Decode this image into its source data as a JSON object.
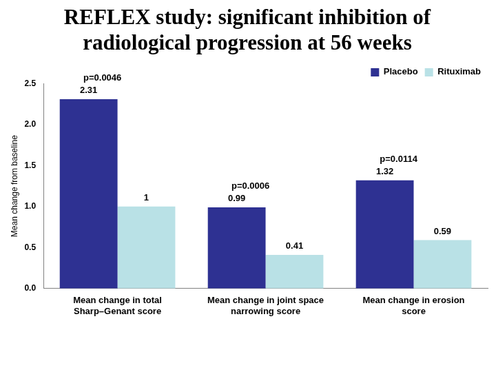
{
  "chart_data": {
    "type": "bar",
    "title": [
      "REFLEX study: significant inhibition of",
      "radiological progression at 56 weeks"
    ],
    "y_label": "Mean change from baseline",
    "categories": [
      [
        "Mean change in total",
        "Sharp–Genant score"
      ],
      [
        "Mean change in joint space",
        "narrowing score"
      ],
      [
        "Mean change in erosion",
        "score"
      ]
    ],
    "series": [
      {
        "name": "Placebo",
        "color": "#2e3192",
        "values": [
          2.31,
          0.99,
          1.32
        ]
      },
      {
        "name": "Rituximab",
        "color": "#b9e1e6",
        "values": [
          1,
          0.41,
          0.59
        ]
      }
    ],
    "annotations": [
      "p=0.0046",
      "p=0.0006",
      "p=0.0114"
    ],
    "ylim": [
      0,
      2.5
    ],
    "yticks": [
      {
        "value": 0,
        "label": "0.0"
      },
      0.5,
      {
        "value": 1,
        "label": "1.0"
      },
      1.5,
      {
        "value": 2,
        "label": "2.0"
      },
      2.5
    ],
    "grid": false,
    "legend": "upper right",
    "data_labels": true
  }
}
